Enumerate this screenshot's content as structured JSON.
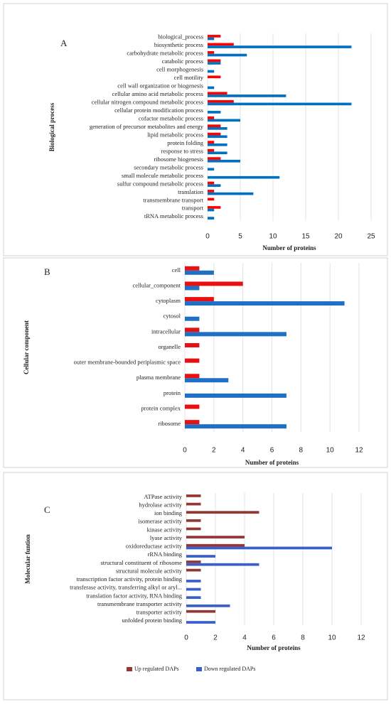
{
  "chart_data": [
    {
      "type": "bar",
      "orientation": "horizontal",
      "panel": "A",
      "y_label": "Biological process",
      "x_label": "Number of proteins",
      "categories": [
        "biological_process",
        "biosynthetic process",
        "carbohydrate metabolic process",
        "catabolic process",
        "cell morphogenesis",
        "cell motility",
        "cell wall organization or biogenesis",
        "cellular amino acid metabolic process",
        "cellular nitrogen compound metabolic process",
        "cellular protein modification process",
        "cofactor metabolic process",
        "generation of precursor metabolites and energy",
        "lipid metabolic process",
        "protein folding",
        "response to stress",
        "ribosome biogenesis",
        "secondary metabolic process",
        "small molecule metabolic process",
        "sulfur compound metabolic process",
        "translation",
        "transmembrane transport",
        "transport",
        "tRNA metabolic process"
      ],
      "series": [
        {
          "color": "#ff0000",
          "values": [
            2,
            4,
            1,
            2,
            0,
            2,
            0,
            3,
            4,
            0,
            1,
            2,
            2,
            1,
            1,
            2,
            0,
            0,
            1,
            1,
            1,
            2,
            0
          ]
        },
        {
          "color": "#0070c0",
          "values": [
            1,
            22,
            6,
            2,
            1,
            0,
            1,
            12,
            22,
            2,
            5,
            3,
            3,
            3,
            3,
            5,
            1,
            11,
            2,
            7,
            0,
            1,
            1
          ]
        }
      ],
      "xlim": [
        0,
        25
      ],
      "xticks": [
        0,
        5,
        10,
        15,
        20,
        25
      ],
      "grid": true
    },
    {
      "type": "bar",
      "orientation": "horizontal",
      "panel": "B",
      "y_label": "Cellular component",
      "x_label": "Number of proteins",
      "categories": [
        "cell",
        "cellular_component",
        "cytoplasm",
        "cytosol",
        "intracellular",
        "organelle",
        "outer membrane-bounded periplasmic space",
        "plasma membrane",
        "protein",
        "protein complex",
        "ribosome"
      ],
      "series": [
        {
          "color": "#e81010",
          "values": [
            1,
            4,
            2,
            0,
            1,
            1,
            1,
            1,
            0,
            1,
            1
          ]
        },
        {
          "color": "#1f6fc4",
          "values": [
            2,
            1,
            11,
            1,
            7,
            0,
            0,
            3,
            7,
            0,
            7
          ]
        }
      ],
      "xlim": [
        0,
        12
      ],
      "xticks": [
        0,
        2,
        4,
        6,
        8,
        10,
        12
      ],
      "grid": true
    },
    {
      "type": "bar",
      "orientation": "horizontal",
      "panel": "C",
      "y_label": "Molecular funtion",
      "x_label": "Number of proteins",
      "categories": [
        "ATPase activity",
        "hydrolase activity",
        "ion binding",
        "isomerase activity",
        "kinase activity",
        "lyase activity",
        "oxidoreductase activity",
        "rRNA binding",
        "structural constituent of ribosome",
        "structural molecule activity",
        "transcription factor activity, protein binding",
        "transferase activity, transferring alkyl or aryl...",
        "translation factor activity, RNA binding",
        "transmembrane transporter activity",
        "transporter activity",
        "unfolded protein binding"
      ],
      "series": [
        {
          "name": "Up regulated DAPs",
          "color": "#943634",
          "values": [
            1,
            1,
            5,
            1,
            1,
            4,
            4,
            0,
            1,
            1,
            0,
            0,
            0,
            0,
            2,
            0
          ]
        },
        {
          "name": "Down regulated DAPs",
          "color": "#3a5fcd",
          "values": [
            0,
            0,
            0,
            0,
            0,
            0,
            10,
            2,
            5,
            0,
            1,
            1,
            1,
            3,
            0,
            2
          ]
        }
      ],
      "xlim": [
        0,
        12
      ],
      "xticks": [
        0,
        2,
        4,
        6,
        8,
        10,
        12
      ],
      "grid": true
    }
  ]
}
